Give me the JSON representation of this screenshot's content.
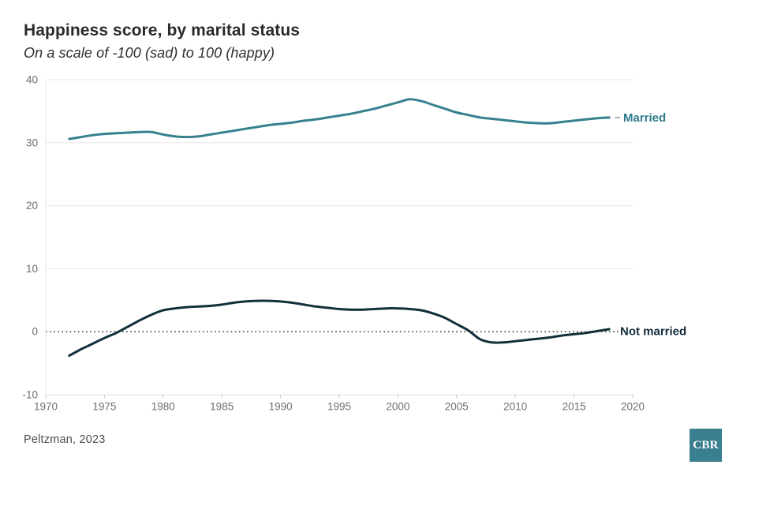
{
  "header": {
    "title": "Happiness score, by marital status",
    "subtitle": "On a scale of -100 (sad) to 100 (happy)"
  },
  "chart_data": {
    "type": "line",
    "title": "Happiness score, by marital status",
    "subtitle": "On a scale of -100 (sad) to 100 (happy)",
    "xlabel": "",
    "ylabel": "",
    "xlim": [
      1970,
      2020
    ],
    "ylim": [
      -10,
      40
    ],
    "x_ticks": [
      1970,
      1975,
      1980,
      1985,
      1990,
      1995,
      2000,
      2005,
      2010,
      2015,
      2020
    ],
    "y_ticks": [
      -10,
      0,
      10,
      20,
      30,
      40
    ],
    "grid": "horizontal",
    "zero_line_style": "dotted",
    "legend_position": "line-end-labels",
    "series": [
      {
        "name": "Married",
        "color": "#37808F",
        "label_color": "#2E7A8A",
        "points": [
          [
            1972,
            30.6
          ],
          [
            1973,
            30.9
          ],
          [
            1974,
            31.2
          ],
          [
            1975,
            31.4
          ],
          [
            1976,
            31.5
          ],
          [
            1977,
            31.6
          ],
          [
            1978,
            31.7
          ],
          [
            1979,
            31.7
          ],
          [
            1980,
            31.3
          ],
          [
            1981,
            31.0
          ],
          [
            1982,
            30.9
          ],
          [
            1983,
            31.0
          ],
          [
            1984,
            31.3
          ],
          [
            1985,
            31.6
          ],
          [
            1986,
            31.9
          ],
          [
            1987,
            32.2
          ],
          [
            1988,
            32.5
          ],
          [
            1989,
            32.8
          ],
          [
            1990,
            33.0
          ],
          [
            1991,
            33.2
          ],
          [
            1992,
            33.5
          ],
          [
            1993,
            33.7
          ],
          [
            1994,
            34.0
          ],
          [
            1995,
            34.3
          ],
          [
            1996,
            34.6
          ],
          [
            1997,
            35.0
          ],
          [
            1998,
            35.4
          ],
          [
            1999,
            35.9
          ],
          [
            2000,
            36.4
          ],
          [
            2001,
            36.9
          ],
          [
            2002,
            36.6
          ],
          [
            2003,
            36.0
          ],
          [
            2004,
            35.4
          ],
          [
            2005,
            34.8
          ],
          [
            2006,
            34.4
          ],
          [
            2007,
            34.0
          ],
          [
            2008,
            33.8
          ],
          [
            2009,
            33.6
          ],
          [
            2010,
            33.4
          ],
          [
            2011,
            33.2
          ],
          [
            2012,
            33.1
          ],
          [
            2013,
            33.1
          ],
          [
            2014,
            33.3
          ],
          [
            2015,
            33.5
          ],
          [
            2016,
            33.7
          ],
          [
            2017,
            33.9
          ],
          [
            2018,
            34.0
          ]
        ]
      },
      {
        "name": "Not married",
        "color": "#11303B",
        "label_color": "#122C3E",
        "points": [
          [
            1972,
            -3.8
          ],
          [
            1973,
            -2.8
          ],
          [
            1974,
            -1.9
          ],
          [
            1975,
            -1.0
          ],
          [
            1976,
            -0.2
          ],
          [
            1977,
            0.8
          ],
          [
            1978,
            1.8
          ],
          [
            1979,
            2.7
          ],
          [
            1980,
            3.4
          ],
          [
            1981,
            3.7
          ],
          [
            1982,
            3.9
          ],
          [
            1983,
            4.0
          ],
          [
            1984,
            4.1
          ],
          [
            1985,
            4.3
          ],
          [
            1986,
            4.6
          ],
          [
            1987,
            4.8
          ],
          [
            1988,
            4.9
          ],
          [
            1989,
            4.9
          ],
          [
            1990,
            4.8
          ],
          [
            1991,
            4.6
          ],
          [
            1992,
            4.3
          ],
          [
            1993,
            4.0
          ],
          [
            1994,
            3.8
          ],
          [
            1995,
            3.6
          ],
          [
            1996,
            3.5
          ],
          [
            1997,
            3.5
          ],
          [
            1998,
            3.6
          ],
          [
            1999,
            3.7
          ],
          [
            2000,
            3.7
          ],
          [
            2001,
            3.6
          ],
          [
            2002,
            3.4
          ],
          [
            2003,
            2.9
          ],
          [
            2004,
            2.2
          ],
          [
            2005,
            1.2
          ],
          [
            2006,
            0.2
          ],
          [
            2007,
            -1.2
          ],
          [
            2008,
            -1.7
          ],
          [
            2009,
            -1.7
          ],
          [
            2010,
            -1.5
          ],
          [
            2011,
            -1.3
          ],
          [
            2012,
            -1.1
          ],
          [
            2013,
            -0.9
          ],
          [
            2014,
            -0.6
          ],
          [
            2015,
            -0.4
          ],
          [
            2016,
            -0.2
          ],
          [
            2017,
            0.1
          ],
          [
            2018,
            0.4
          ]
        ]
      }
    ]
  },
  "colors": {
    "married_line": "#37808F",
    "married_label": "#2E7A8A",
    "not_married_line": "#11303B",
    "not_married_label": "#122C3E",
    "zero_line": "#4a4a4a",
    "grid_line": "#e8e8e8",
    "axis_line": "#dcdcdc",
    "tick_text": "#6e6e6e",
    "logo_bg": "#3A7F90"
  },
  "footer": {
    "source": "Peltzman, 2023",
    "logo_text": "CBR"
  }
}
